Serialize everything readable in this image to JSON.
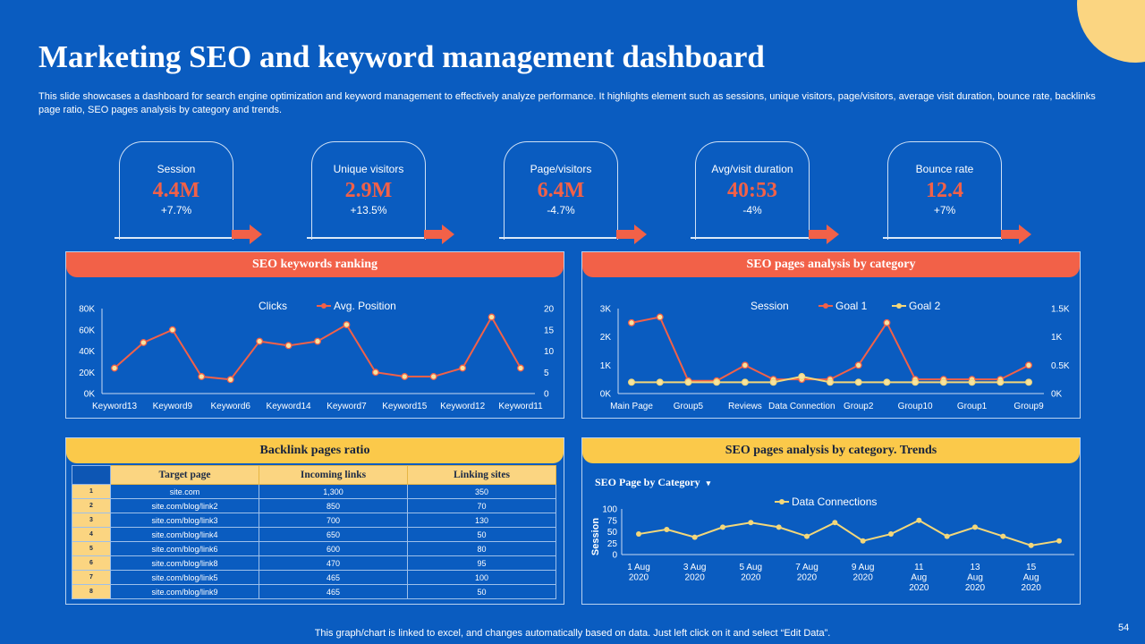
{
  "page": {
    "title": "Marketing SEO and keyword management dashboard",
    "subtitle": "This slide showcases a dashboard for search engine optimization and keyword management to effectively  analyze performance. It highlights element such as sessions, unique visitors, page/visitors, average visit duration, bounce rate, backlinks page ratio, SEO pages analysis by category and trends.",
    "footer": "This graph/chart is linked to excel,  and changes automatically based on data. Just left click on it and select “Edit Data”.",
    "page_number": "54"
  },
  "colors": {
    "background": "#0a5cc0",
    "accent_red": "#f26148",
    "accent_yellow": "#fbc94a",
    "line_yellow": "#f3d77a"
  },
  "kpis": [
    {
      "label": "Session",
      "value": "4.4M",
      "change": "+7.7%"
    },
    {
      "label": "Unique visitors",
      "value": "2.9M",
      "change": "+13.5%"
    },
    {
      "label": "Page/visitors",
      "value": "6.4M",
      "change": "-4.7%"
    },
    {
      "label": "Avg/visit  duration",
      "value": "40:53",
      "change": "-4%"
    },
    {
      "label": "Bounce rate",
      "value": "12.4",
      "change": "+7%"
    }
  ],
  "panels": {
    "keywords": {
      "title": "SEO keywords ranking"
    },
    "category": {
      "title": "SEO pages analysis by category"
    },
    "backlinks": {
      "title": "Backlink pages ratio"
    },
    "trends": {
      "title": "SEO pages analysis by category. Trends",
      "dropdown_label": "SEO Page by Category",
      "dropdown_caret": "▾"
    }
  },
  "backlinks": {
    "headers": [
      "Target page",
      "Incoming links",
      "Linking sites"
    ],
    "rows": [
      {
        "index": "1",
        "page": "site.com",
        "incoming": "1,300",
        "sites": "350"
      },
      {
        "index": "2",
        "page": "site.com/blog/link2",
        "incoming": "850",
        "sites": "70"
      },
      {
        "index": "3",
        "page": "site.com/blog/link3",
        "incoming": "700",
        "sites": "130"
      },
      {
        "index": "4",
        "page": "site.com/blog/link4",
        "incoming": "650",
        "sites": "50"
      },
      {
        "index": "5",
        "page": "site.com/blog/link6",
        "incoming": "600",
        "sites": "80"
      },
      {
        "index": "6",
        "page": "site.com/blog/link8",
        "incoming": "470",
        "sites": "95"
      },
      {
        "index": "7",
        "page": "site.com/blog/link5",
        "incoming": "465",
        "sites": "100"
      },
      {
        "index": "8",
        "page": "site.com/blog/link9",
        "incoming": "465",
        "sites": "50"
      }
    ]
  },
  "chart_data": [
    {
      "id": "keywords",
      "type": "line",
      "title": "SEO keywords ranking",
      "categories": [
        "Keyword13",
        "Keyword10",
        "Keyword9",
        "Keyword3",
        "Keyword6",
        "Keyword1",
        "Keyword14",
        "Keyword2",
        "Keyword7",
        "Keyword4",
        "Keyword15",
        "Keyword5",
        "Keyword12",
        "Keyword8",
        "Keyword11"
      ],
      "tick_labels": [
        "Keyword13",
        "Keyword9",
        "Keyword6",
        "Keyword14",
        "Keyword7",
        "Keyword15",
        "Keyword12",
        "Keyword11"
      ],
      "series": [
        {
          "name": "Clicks",
          "axis": "left",
          "values": [
            0,
            0,
            0,
            0,
            0,
            0,
            0,
            0,
            0,
            0,
            0,
            0,
            0,
            0,
            0
          ]
        },
        {
          "name": "Avg. Position",
          "axis": "right",
          "values": [
            6,
            12,
            15,
            4,
            3.3,
            12.3,
            11.3,
            12.3,
            16.2,
            5,
            4,
            4,
            6,
            18,
            6
          ]
        }
      ],
      "y_left": {
        "ticks": [
          "0K",
          "20K",
          "40K",
          "60K",
          "80K"
        ],
        "range": [
          0,
          80000
        ]
      },
      "y_right": {
        "ticks": [
          "0",
          "5",
          "10",
          "15",
          "20"
        ],
        "range": [
          0,
          20
        ]
      },
      "legend": "top"
    },
    {
      "id": "category",
      "type": "line",
      "title": "SEO pages analysis by category",
      "categories": [
        "Main Page",
        "Group4",
        "Group5",
        "Group11",
        "Reviews",
        "Group3",
        "Data Connection",
        "Group6",
        "Group2",
        "Group7",
        "Group10",
        "Group8",
        "Group1",
        "Group12",
        "Group9"
      ],
      "tick_labels": [
        "Main Page",
        "Group5",
        "Reviews",
        "Data Connection",
        "Group2",
        "Group10",
        "Group1",
        "Group9"
      ],
      "series": [
        {
          "name": "Session",
          "axis": "left",
          "values": [
            0,
            0,
            0,
            0,
            0,
            0,
            0,
            0,
            0,
            0,
            0,
            0,
            0,
            0,
            0
          ]
        },
        {
          "name": "Goal 1",
          "axis": "left",
          "values": [
            2.5,
            2.7,
            0.45,
            0.45,
            1,
            0.5,
            0.5,
            0.5,
            1,
            2.5,
            0.5,
            0.5,
            0.5,
            0.5,
            1
          ]
        },
        {
          "name": "Goal 2",
          "axis": "right",
          "values": [
            0.2,
            0.2,
            0.2,
            0.2,
            0.2,
            0.2,
            0.3,
            0.2,
            0.2,
            0.2,
            0.2,
            0.2,
            0.2,
            0.2,
            0.2
          ]
        }
      ],
      "y_left": {
        "ticks": [
          "0K",
          "1K",
          "2K",
          "3K"
        ],
        "range": [
          0,
          3
        ]
      },
      "y_right": {
        "ticks": [
          "0K",
          "0.5K",
          "1K",
          "1.5K"
        ],
        "range": [
          0,
          1.5
        ]
      },
      "legend": "top"
    },
    {
      "id": "trends",
      "type": "line",
      "title": "SEO pages analysis by category. Trends",
      "ylabel": "Session",
      "categories": [
        "1 Aug 2020",
        "2 Aug 2020",
        "3 Aug 2020",
        "4 Aug 2020",
        "5 Aug 2020",
        "6 Aug 2020",
        "7 Aug 2020",
        "8 Aug 2020",
        "9 Aug 2020",
        "10 Aug 2020",
        "11 Aug 2020",
        "12 Aug 2020",
        "13 Aug 2020",
        "14 Aug 2020",
        "15 Aug 2020",
        "16 Aug 2020"
      ],
      "tick_labels": [
        [
          "1 Aug",
          "2020"
        ],
        [
          "3 Aug",
          "2020"
        ],
        [
          "5 Aug",
          "2020"
        ],
        [
          "7 Aug",
          "2020"
        ],
        [
          "9 Aug",
          "2020"
        ],
        [
          "11",
          "Aug",
          "2020"
        ],
        [
          "13",
          "Aug",
          "2020"
        ],
        [
          "15",
          "Aug",
          "2020"
        ]
      ],
      "series": [
        {
          "name": "Data Connections",
          "values": [
            45,
            55,
            38,
            60,
            70,
            60,
            40,
            70,
            30,
            45,
            75,
            40,
            60,
            40,
            20,
            30
          ]
        }
      ],
      "y_left": {
        "ticks": [
          "0",
          "25",
          "50",
          "75",
          "100"
        ],
        "range": [
          0,
          100
        ]
      },
      "legend": "top"
    }
  ]
}
